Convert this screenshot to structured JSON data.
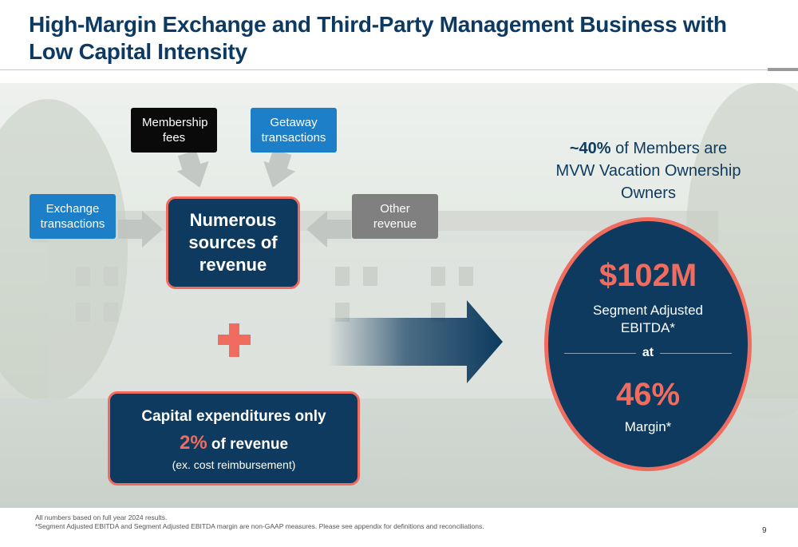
{
  "title": "High-Margin Exchange and Third-Party Management Business with Low Capital Intensity",
  "sources": {
    "membership": "Membership fees",
    "getaway": "Getaway transactions",
    "exchange": "Exchange transactions",
    "other": "Other revenue",
    "center": "Numerous sources of revenue"
  },
  "capex": {
    "line1": "Capital expenditures only",
    "percent": "2%",
    "line2_suffix": " of revenue",
    "line3": "(ex. cost reimbursement)"
  },
  "members": {
    "pct": "~40%",
    "text": " of Members are MVW Vacation Ownership Owners"
  },
  "oval": {
    "value1": "$102M",
    "label1": "Segment Adjusted EBITDA*",
    "at": "at",
    "value2": "46%",
    "label2": "Margin*"
  },
  "colors": {
    "navy": "#0d3a5e",
    "coral": "#f06c5f",
    "blue": "#1c7fc7",
    "gray": "#808080"
  },
  "footnotes": {
    "line1": "All numbers based on full year 2024 results.",
    "line2": "*Segment Adjusted EBITDA and Segment Adjusted EBITDA margin are non-GAAP measures.  Please see appendix for definitions and reconciliations."
  },
  "page_number": "9"
}
